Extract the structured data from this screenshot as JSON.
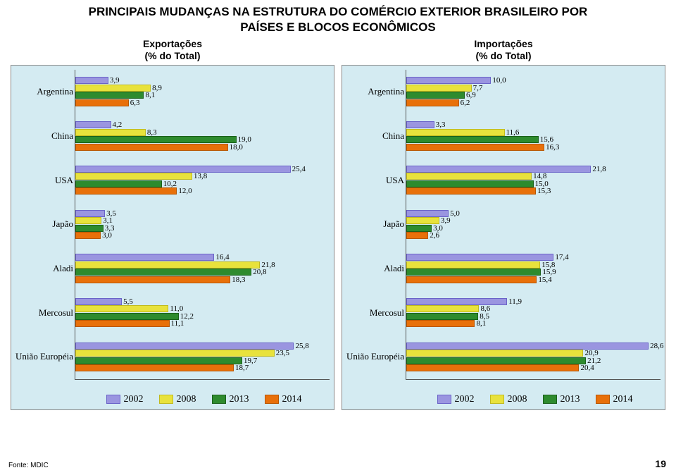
{
  "title_line1": "PRINCIPAIS MUDANÇAS NA ESTRUTURA DO COMÉRCIO EXTERIOR BRASILEIRO POR",
  "title_line2": "PAÍSES E BLOCOS ECONÔMICOS",
  "footer": "Fonte: MDIC",
  "page_number": "19",
  "colors": {
    "chart_bg": "#d4ebf2",
    "s2002": "#9a95e0",
    "s2008": "#e8e23c",
    "s2013": "#2e8b2e",
    "s2014": "#e8700a"
  },
  "legend": {
    "y2002": "2002",
    "y2008": "2008",
    "y2013": "2013",
    "y2014": "2014"
  },
  "exports": {
    "subtitle1": "Exportações",
    "subtitle2": "(% do Total)",
    "xmax": 30,
    "categories": [
      "Argentina",
      "China",
      "USA",
      "Japão",
      "Aladi",
      "Mercosul",
      "União Européia"
    ],
    "series": {
      "Argentina": {
        "2002": 3.9,
        "2008": 8.9,
        "2013": 8.1,
        "2014": 6.3
      },
      "China": {
        "2002": 4.2,
        "2008": 8.3,
        "2013": 19.0,
        "2014": 18.0
      },
      "USA": {
        "2002": 25.4,
        "2008": 13.8,
        "2013": 10.2,
        "2014": 12.0
      },
      "Japão": {
        "2002": 3.5,
        "2008": 3.1,
        "2013": 3.3,
        "2014": 3.0
      },
      "Aladi": {
        "2002": 16.4,
        "2008": 21.8,
        "2013": 20.8,
        "2014": 18.3
      },
      "Mercosul": {
        "2002": 5.5,
        "2008": 11.0,
        "2013": 12.2,
        "2014": 11.1
      },
      "União Européia": {
        "2002": 25.8,
        "2008": 23.5,
        "2013": 19.7,
        "2014": 18.7
      }
    },
    "labels": {
      "Argentina": {
        "2002": "3,9",
        "2008": "8,9",
        "2013": "8,1",
        "2014": "6,3"
      },
      "China": {
        "2002": "4,2",
        "2008": "8,3",
        "2013": "19,0",
        "2014": "18,0"
      },
      "USA": {
        "2002": "25,4",
        "2008": "13,8",
        "2013": "10,2",
        "2014": "12,0"
      },
      "Japão": {
        "2002": "3,5",
        "2008": "3,1",
        "2013": "3,3",
        "2014": "3,0"
      },
      "Aladi": {
        "2002": "16,4",
        "2008": "21,8",
        "2013": "20,8",
        "2014": "18,3"
      },
      "Mercosul": {
        "2002": "5,5",
        "2008": "11,0",
        "2013": "12,2",
        "2014": "11,1"
      },
      "União Européia": {
        "2002": "25,8",
        "2008": "23,5",
        "2013": "19,7",
        "2014": "18,7"
      }
    }
  },
  "imports": {
    "subtitle1": "Importações",
    "subtitle2": "(% do Total)",
    "xmax": 30,
    "categories": [
      "Argentina",
      "China",
      "USA",
      "Japão",
      "Aladi",
      "Mercosul",
      "União Européia"
    ],
    "series": {
      "Argentina": {
        "2002": 10.0,
        "2008": 7.7,
        "2013": 6.9,
        "2014": 6.2
      },
      "China": {
        "2002": 3.3,
        "2008": 11.6,
        "2013": 15.6,
        "2014": 16.3
      },
      "USA": {
        "2002": 21.8,
        "2008": 14.8,
        "2013": 15.0,
        "2014": 15.3
      },
      "Japão": {
        "2002": 5.0,
        "2008": 3.9,
        "2013": 3.0,
        "2014": 2.6
      },
      "Aladi": {
        "2002": 17.4,
        "2008": 15.8,
        "2013": 15.9,
        "2014": 15.4
      },
      "Mercosul": {
        "2002": 11.9,
        "2008": 8.6,
        "2013": 8.5,
        "2014": 8.1
      },
      "União Européia": {
        "2002": 28.6,
        "2008": 20.9,
        "2013": 21.2,
        "2014": 20.4
      }
    },
    "labels": {
      "Argentina": {
        "2002": "10,0",
        "2008": "7,7",
        "2013": "6,9",
        "2014": "6,2"
      },
      "China": {
        "2002": "3,3",
        "2008": "11,6",
        "2013": "15,6",
        "2014": "16,3"
      },
      "USA": {
        "2002": "21,8",
        "2008": "14,8",
        "2013": "15,0",
        "2014": "15,3"
      },
      "Japão": {
        "2002": "5,0",
        "2008": "3,9",
        "2013": "3,0",
        "2014": "2,6"
      },
      "Aladi": {
        "2002": "17,4",
        "2008": "15,8",
        "2013": "15,9",
        "2014": "15,4"
      },
      "Mercosul": {
        "2002": "11,9",
        "2008": "8,6",
        "2013": "8,5",
        "2014": "8,1"
      },
      "União Européia": {
        "2002": "28,6",
        "2008": "20,9",
        "2013": "21,2",
        "2014": "20,4"
      }
    }
  }
}
